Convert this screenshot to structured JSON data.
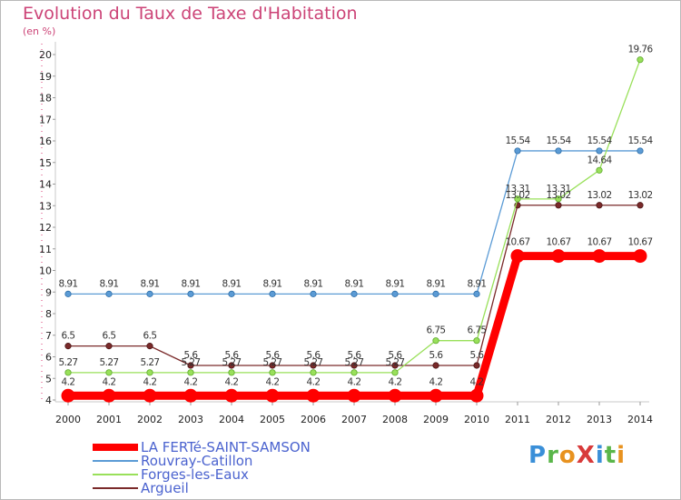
{
  "brand": {
    "text": "ProXiti",
    "letters": [
      {
        "ch": "P",
        "color": "#3a8fd8"
      },
      {
        "ch": "r",
        "color": "#5ab64a"
      },
      {
        "ch": "o",
        "color": "#e8921f"
      },
      {
        "ch": "X",
        "color": "#d83a3a"
      },
      {
        "ch": "i",
        "color": "#3a8fd8"
      },
      {
        "ch": "t",
        "color": "#5ab64a"
      },
      {
        "ch": "i",
        "color": "#e8921f"
      }
    ]
  },
  "chart_data": {
    "type": "line",
    "title": "Evolution du Taux de Taxe d'Habitation",
    "ylabel": "(en %)",
    "xlabel": "",
    "x": [
      2000,
      2001,
      2002,
      2003,
      2004,
      2005,
      2006,
      2007,
      2008,
      2009,
      2010,
      2011,
      2012,
      2013,
      2014
    ],
    "ylim": [
      4,
      20
    ],
    "yticks": [
      4,
      5,
      6,
      7,
      8,
      9,
      10,
      11,
      12,
      13,
      14,
      15,
      16,
      17,
      18,
      19,
      20
    ],
    "grid": false,
    "legend_position": "bottom-left",
    "series": [
      {
        "name": "LA FERTé-SAINT-SAMSON",
        "color": "#ff0000",
        "values": [
          4.2,
          4.2,
          4.2,
          4.2,
          4.2,
          4.2,
          4.2,
          4.2,
          4.2,
          4.2,
          4.2,
          10.67,
          10.67,
          10.67,
          10.67
        ],
        "labels": [
          "4.2",
          "4.2",
          "4.2",
          "4.2",
          "4.2",
          "4.2",
          "4.2",
          "4.2",
          "4.2",
          "4.2",
          "4.2",
          "10.67",
          "10.67",
          "10.67",
          "10.67"
        ]
      },
      {
        "name": "Rouvray-Catillon",
        "color": "#5b9bd5",
        "values": [
          8.91,
          8.91,
          8.91,
          8.91,
          8.91,
          8.91,
          8.91,
          8.91,
          8.91,
          8.91,
          8.91,
          15.54,
          15.54,
          15.54,
          15.54
        ],
        "labels": [
          "8.91",
          "8.91",
          "8.91",
          "8.91",
          "8.91",
          "8.91",
          "8.91",
          "8.91",
          "8.91",
          "8.91",
          "8.91",
          "15.54",
          "15.54",
          "15.54",
          "15.54"
        ]
      },
      {
        "name": "Forges-les-Eaux",
        "color": "#99e05a",
        "values": [
          5.27,
          5.27,
          5.27,
          5.27,
          5.27,
          5.27,
          5.27,
          5.27,
          5.27,
          6.75,
          6.75,
          13.31,
          13.31,
          14.64,
          19.76
        ],
        "labels": [
          "5.27",
          "5.27",
          "5.27",
          "5.27",
          "5.27",
          "5.27",
          "5.27",
          "5.27",
          "5.27",
          "6.75",
          "6.75",
          "13.31",
          "13.31",
          "14.64",
          "19.76"
        ]
      },
      {
        "name": "Argueil",
        "color": "#7a2a2a",
        "values": [
          6.5,
          6.5,
          6.5,
          5.6,
          5.6,
          5.6,
          5.6,
          5.6,
          5.6,
          5.6,
          5.6,
          13.02,
          13.02,
          13.02,
          13.02
        ],
        "labels": [
          "6.5",
          "6.5",
          "6.5",
          "5.6",
          "5.6",
          "5.6",
          "5.6",
          "5.6",
          "5.6",
          "5.6",
          "5.6",
          "13.02",
          "13.02",
          "13.02",
          "13.02"
        ]
      }
    ]
  }
}
